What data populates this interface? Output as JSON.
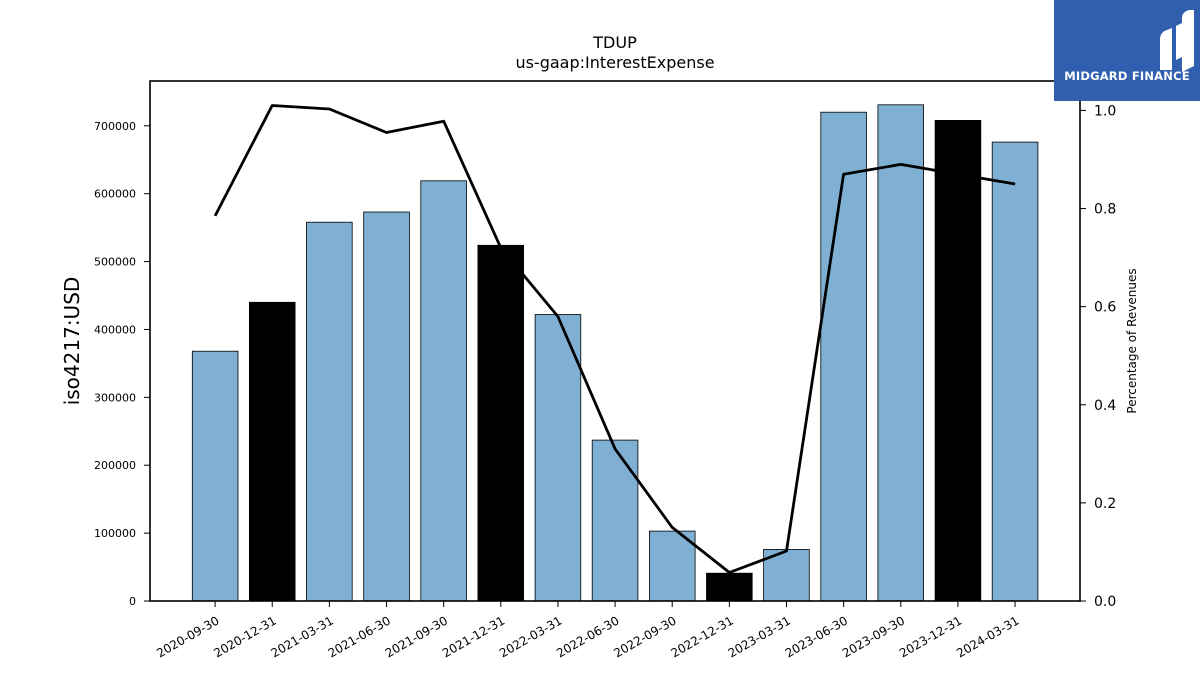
{
  "brand": {
    "name": "MIDGARD FINANCE",
    "bg_color": "#2f5fae",
    "icon": "midgard-logo-icon"
  },
  "chart_data": {
    "type": "bar",
    "title": "TDUP",
    "subtitle": "us-gaap:InterestExpense",
    "ylabel": "iso4217:USD",
    "y2label": "Percentage of Revenues",
    "categories": [
      "2020-09-30",
      "2020-12-31",
      "2021-03-31",
      "2021-06-30",
      "2021-09-30",
      "2021-12-31",
      "2022-03-31",
      "2022-06-30",
      "2022-09-30",
      "2022-12-31",
      "2023-03-31",
      "2023-06-30",
      "2023-09-30",
      "2023-12-31",
      "2024-03-31"
    ],
    "values": [
      368000,
      440000,
      558000,
      573000,
      619000,
      524000,
      422000,
      237000,
      103000,
      41000,
      76000,
      720000,
      731000,
      708000,
      676000
    ],
    "highlight": [
      false,
      true,
      false,
      false,
      false,
      true,
      false,
      false,
      false,
      true,
      false,
      false,
      false,
      true,
      false
    ],
    "bar_color": "#7fb0d4",
    "highlight_color": "#000000",
    "ylim": [
      0,
      766000
    ],
    "yticks": [
      0,
      100000,
      200000,
      300000,
      400000,
      500000,
      600000,
      700000
    ],
    "ytick_labels": [
      "0",
      "100000",
      "200000",
      "300000",
      "400000",
      "500000",
      "600000",
      "700000"
    ],
    "line_series": {
      "values": [
        0.785,
        1.01,
        1.003,
        0.955,
        0.978,
        0.72,
        0.58,
        0.31,
        0.15,
        0.058,
        0.102,
        0.87,
        0.89,
        0.87,
        0.85
      ],
      "color": "#000000"
    },
    "y2lim": [
      0,
      1.06
    ],
    "y2ticks": [
      0.0,
      0.2,
      0.4,
      0.6,
      0.8,
      1.0
    ],
    "y2tick_labels": [
      "0.0",
      "0.2",
      "0.4",
      "0.6",
      "0.8",
      "1.0"
    ],
    "grid": false
  }
}
